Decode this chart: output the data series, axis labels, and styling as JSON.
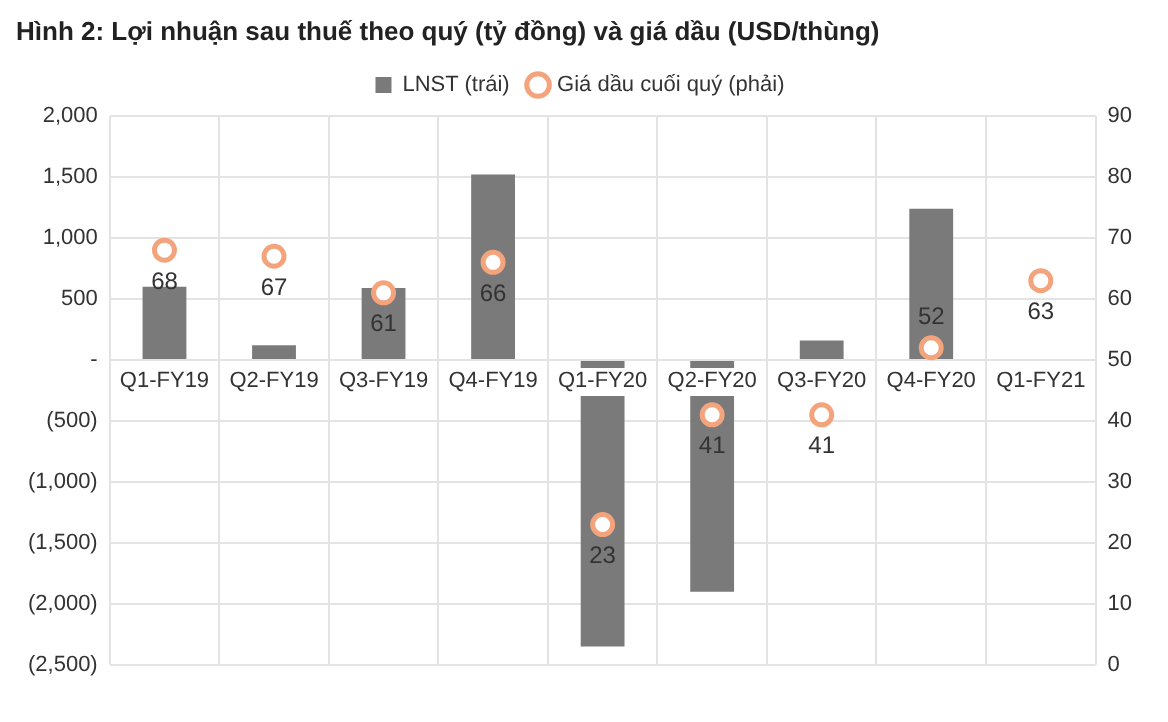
{
  "chart_data": {
    "type": "bar",
    "title": "Hình 2: Lợi nhuận sau thuế theo quý (tỷ đồng) và giá dầu (USD/thùng)",
    "categories": [
      "Q1-FY19",
      "Q2-FY19",
      "Q3-FY19",
      "Q4-FY19",
      "Q1-FY20",
      "Q2-FY20",
      "Q3-FY20",
      "Q4-FY20",
      "Q1-FY21"
    ],
    "series": [
      {
        "name": "LNST (trái)",
        "color": "#7a7a7a",
        "values": [
          600,
          120,
          590,
          1520,
          -2350,
          -1900,
          160,
          1240,
          null
        ]
      },
      {
        "name": "Giá dầu cuối quý (phải)",
        "type": "scatter",
        "axis": "y2",
        "color": "#f4a47c",
        "marker": "circle",
        "values": [
          68,
          67,
          61,
          66,
          23,
          41,
          41,
          52,
          63
        ],
        "value_labels": [
          "68",
          "67",
          "61",
          "66",
          "23",
          "41",
          "41",
          "52",
          "63"
        ]
      }
    ],
    "ylim": [
      -2500,
      2000
    ],
    "yticks": [
      {
        "value": -2500,
        "label": "(2,500)"
      },
      {
        "value": -2000,
        "label": "(2,000)"
      },
      {
        "value": -1500,
        "label": "(1,500)"
      },
      {
        "value": -1000,
        "label": "(1,000)"
      },
      {
        "value": -500,
        "label": "(500)"
      },
      {
        "value": 0,
        "label": "-"
      },
      {
        "value": 500,
        "label": "500"
      },
      {
        "value": 1000,
        "label": "1,000"
      },
      {
        "value": 1500,
        "label": "1,500"
      },
      {
        "value": 2000,
        "label": "2,000"
      }
    ],
    "y2lim": [
      0,
      90
    ],
    "y2ticks": [
      0,
      10,
      20,
      30,
      40,
      50,
      60,
      70,
      80,
      90
    ],
    "grid": true,
    "legend": "top"
  }
}
